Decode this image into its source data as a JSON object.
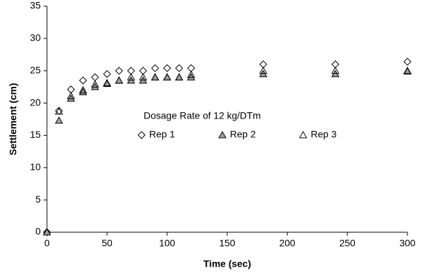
{
  "chart_data": {
    "type": "scatter",
    "x_label": "Time (sec)",
    "y_label": "Settlement (cm)",
    "legend_title": "Dosage Rate of 12 kg/DTm",
    "x": [
      0,
      10,
      20,
      30,
      40,
      50,
      60,
      70,
      80,
      90,
      100,
      110,
      120,
      180,
      240,
      300
    ],
    "series": [
      {
        "name": "Rep 1",
        "color": "#000000",
        "marker": "diamond",
        "fill": "none",
        "values": [
          0,
          18.8,
          22.1,
          23.5,
          24,
          24.5,
          25,
          25,
          25,
          25.4,
          25.4,
          25.4,
          25.4,
          26,
          26,
          26.4
        ]
      },
      {
        "name": "Rep 2",
        "color": "#000000",
        "marker": "triangle",
        "fill": "#a0a0a0",
        "values": [
          0,
          17.3,
          20.7,
          21.7,
          22.5,
          23,
          23.5,
          23.5,
          23.5,
          24,
          24,
          24,
          24,
          24.5,
          24.5,
          24.9
        ]
      },
      {
        "name": "Rep 3",
        "color": "#000000",
        "marker": "triangle",
        "fill": "none",
        "values": [
          0,
          18.7,
          21.1,
          22,
          22.9,
          23.1,
          23.5,
          24,
          24,
          24,
          24,
          24,
          24.4,
          25,
          25,
          25
        ]
      }
    ],
    "xlim": [
      0,
      300
    ],
    "xticks": [
      0,
      50,
      100,
      150,
      200,
      250,
      300
    ],
    "ylim": [
      0,
      35
    ],
    "yticks": [
      0,
      5,
      10,
      15,
      20,
      25,
      30,
      35
    ],
    "grid": false
  }
}
